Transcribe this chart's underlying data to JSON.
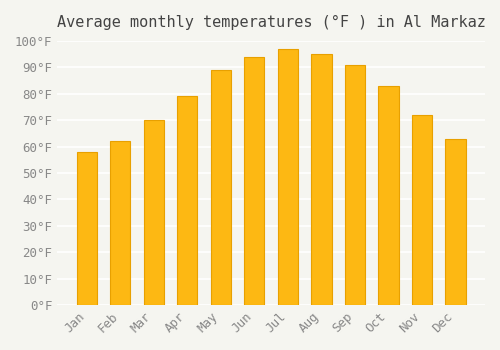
{
  "title": "Average monthly temperatures (°F ) in Al Markaz",
  "months": [
    "Jan",
    "Feb",
    "Mar",
    "Apr",
    "May",
    "Jun",
    "Jul",
    "Aug",
    "Sep",
    "Oct",
    "Nov",
    "Dec"
  ],
  "values": [
    58,
    62,
    70,
    79,
    89,
    94,
    97,
    95,
    91,
    83,
    72,
    63
  ],
  "bar_color": "#FDB813",
  "bar_edge_color": "#E8A000",
  "background_color": "#F5F5F0",
  "grid_color": "#FFFFFF",
  "ylim": [
    0,
    100
  ],
  "yticks": [
    0,
    10,
    20,
    30,
    40,
    50,
    60,
    70,
    80,
    90,
    100
  ],
  "ytick_labels": [
    "0°F",
    "10°F",
    "20°F",
    "30°F",
    "40°F",
    "50°F",
    "60°F",
    "70°F",
    "80°F",
    "90°F",
    "100°F"
  ],
  "title_fontsize": 11,
  "tick_fontsize": 9,
  "tick_color": "#888888",
  "spine_color": "#CCCCCC"
}
